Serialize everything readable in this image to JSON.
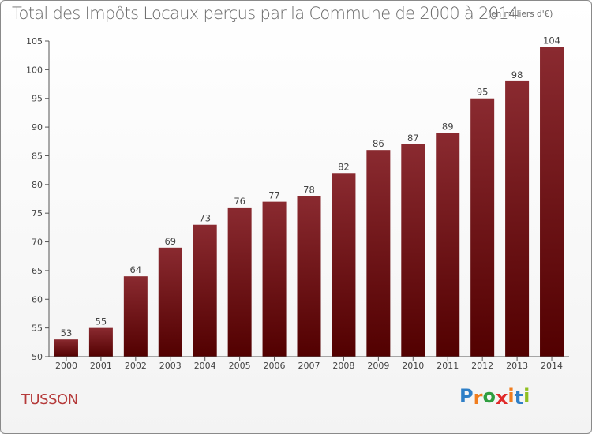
{
  "chart_data": {
    "type": "bar",
    "title": "Total des Impôts Locaux perçus par la Commune de 2000 à 2014",
    "unit_label": "(en milliers d'€)",
    "categories": [
      "2000",
      "2001",
      "2002",
      "2003",
      "2004",
      "2005",
      "2006",
      "2007",
      "2008",
      "2009",
      "2010",
      "2011",
      "2012",
      "2013",
      "2014"
    ],
    "values": [
      53,
      55,
      64,
      69,
      73,
      76,
      77,
      78,
      82,
      86,
      87,
      89,
      95,
      98,
      104
    ],
    "ylim": [
      50,
      105
    ],
    "yticks": [
      50,
      55,
      60,
      65,
      70,
      75,
      80,
      85,
      90,
      95,
      100,
      105
    ],
    "xlabel": "",
    "ylabel": "",
    "grid": false,
    "bar_color": "#7b1f24"
  },
  "commune": "TUSSON",
  "brand": {
    "letters": [
      "P",
      "r",
      "o",
      "x",
      "i",
      "t",
      "i"
    ],
    "colors": [
      "#2e7fc7",
      "#f07d1e",
      "#2f9e3f",
      "#e02a2a",
      "#f07d1e",
      "#2e7fc7",
      "#8fbf1f"
    ]
  }
}
